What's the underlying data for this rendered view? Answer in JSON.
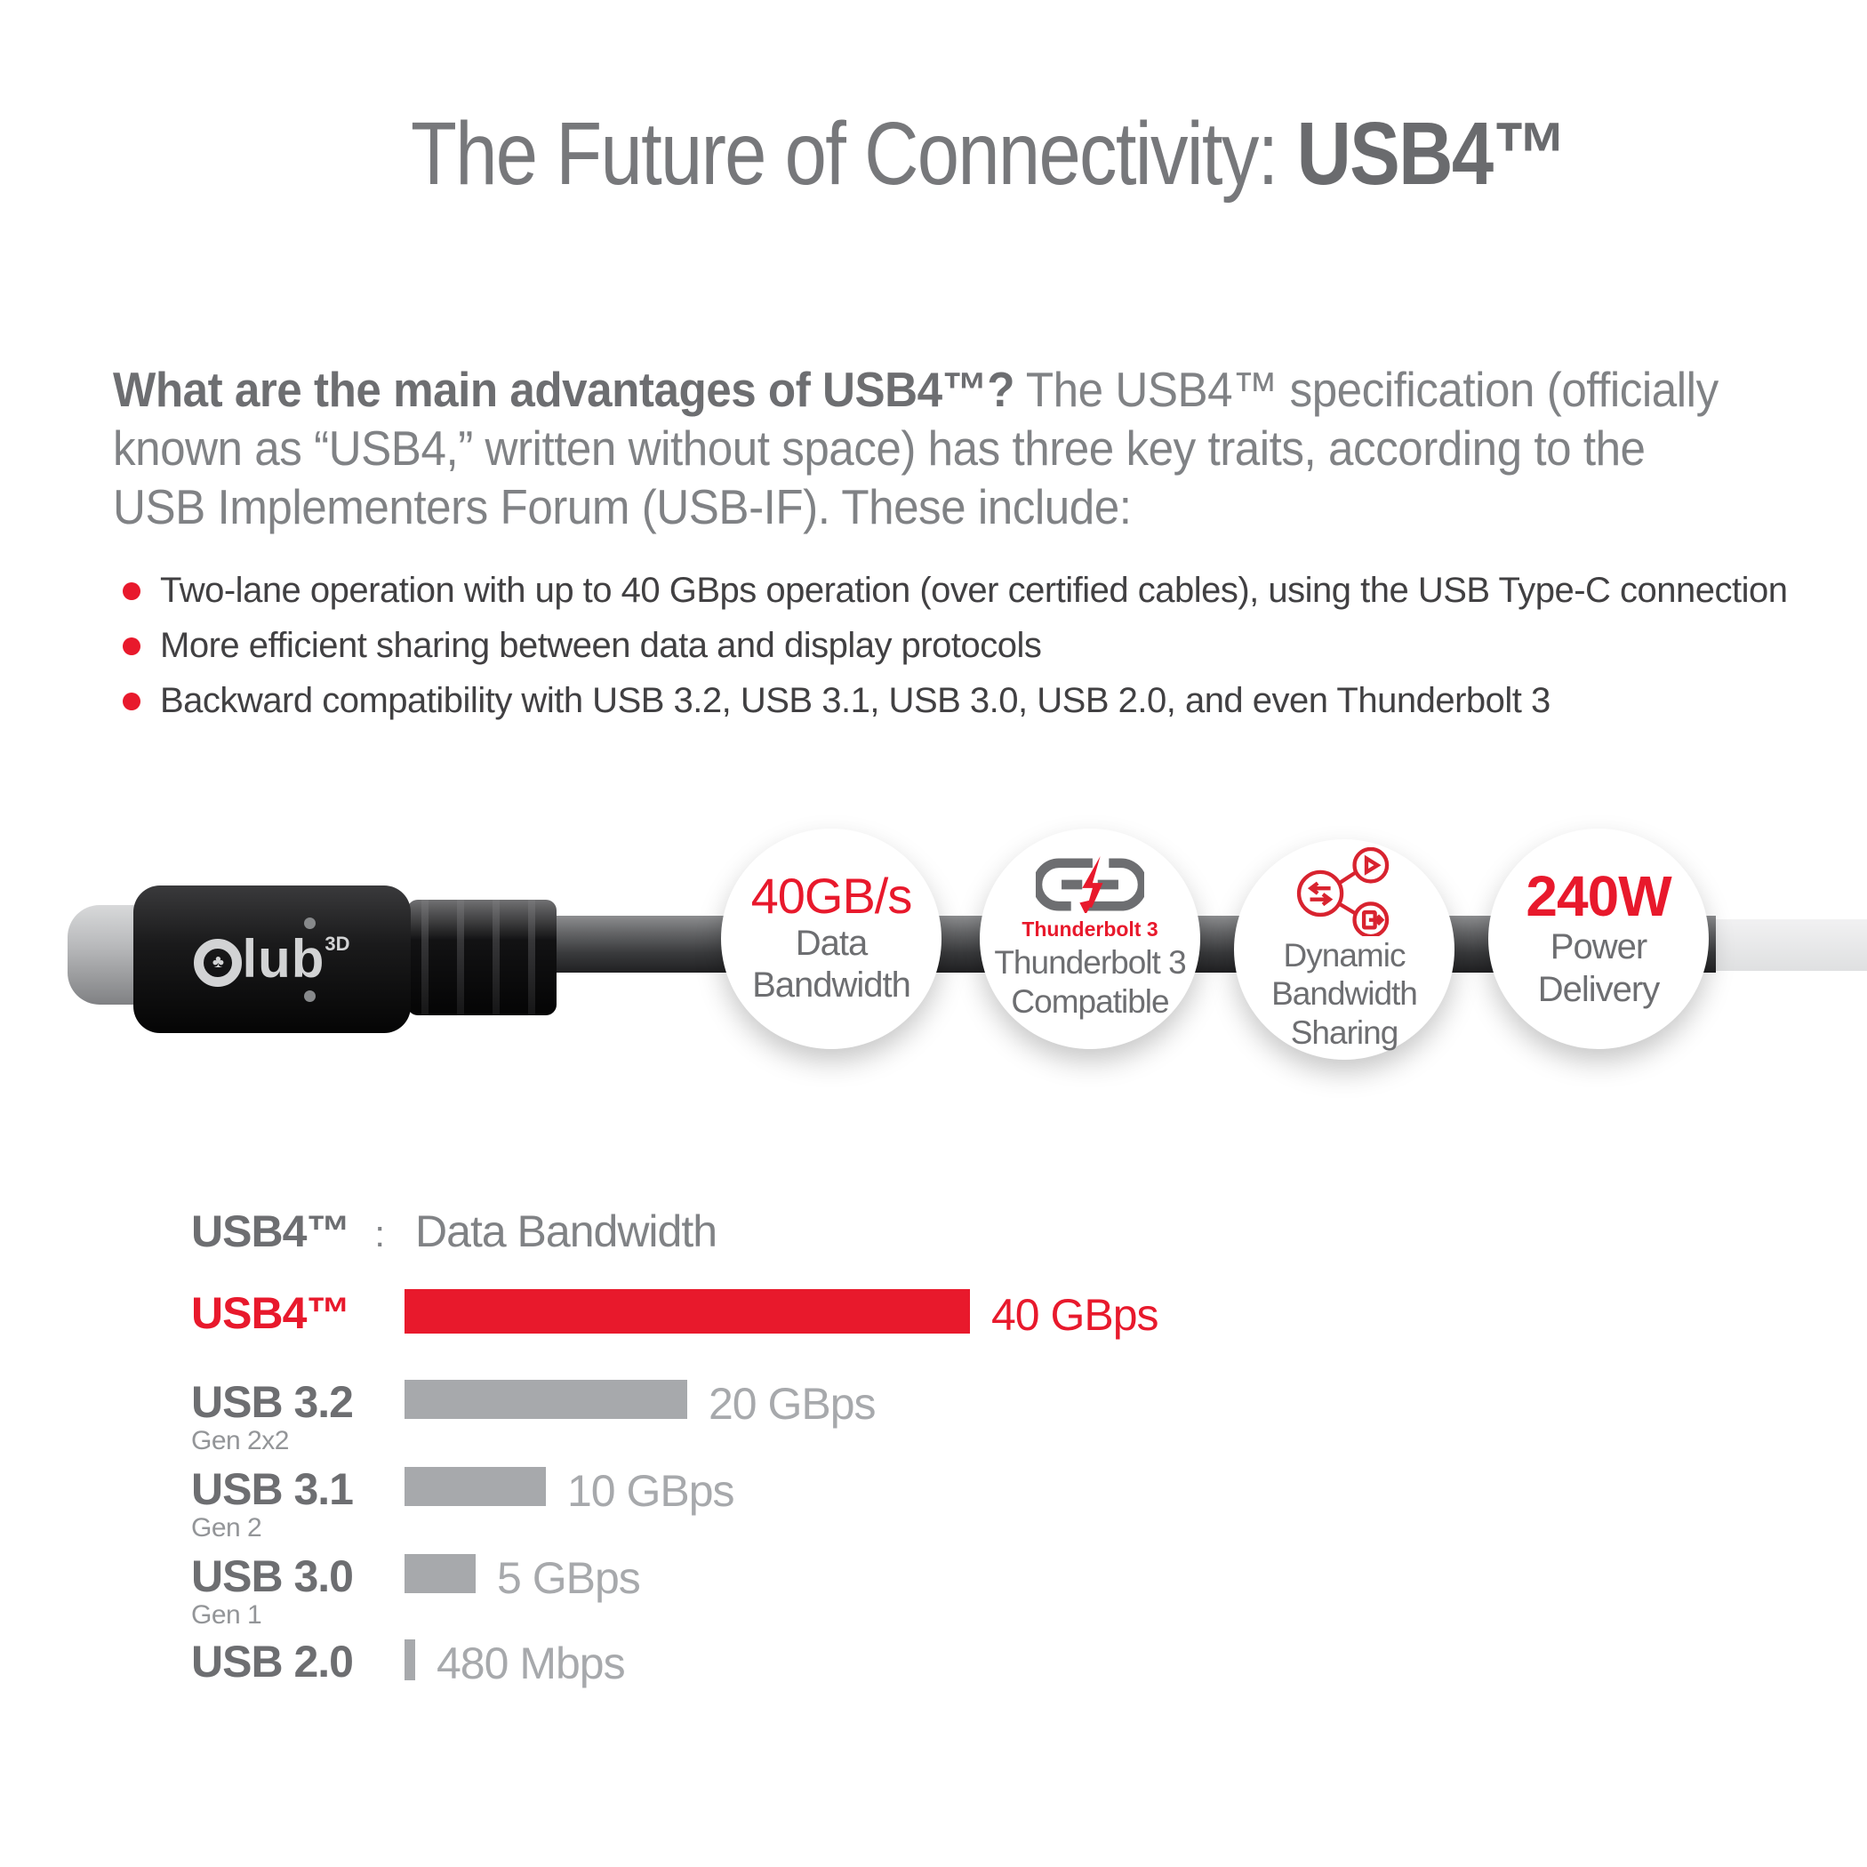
{
  "title": {
    "regular": "The Future of Connectivity: ",
    "product": "USB4™"
  },
  "intro": {
    "question": "What are the main advantages of USB4™?",
    "body": " The USB4™ specification (officially known as “USB4,” written without space) has three key traits, according to the USB Implementers Forum (USB-IF). These include:"
  },
  "bullets": [
    "Two-lane operation with up to 40 GBps operation (over certified cables), using the USB Type-C connection",
    "More efficient sharing between data and display protocols",
    "Backward compatibility with USB 3.2, USB 3.1, USB 3.0, USB 2.0, and even Thunderbolt 3"
  ],
  "cable": {
    "brand": "Club 3D",
    "brand_rest": "lub",
    "brand_sup": "3D"
  },
  "badges": [
    {
      "headline": "40GB/s",
      "lines": [
        "Data",
        "Bandwidth"
      ]
    },
    {
      "icon": "thunderbolt-3-logo",
      "icon_label": "Thunderbolt 3",
      "lines": [
        "Thunderbolt 3",
        "Compatible"
      ]
    },
    {
      "icon": "share-icon",
      "lines": [
        "Dynamic",
        "Bandwidth",
        "Sharing"
      ]
    },
    {
      "headline": "240W",
      "lines": [
        "Power",
        "Delivery"
      ]
    }
  ],
  "chart": {
    "heading_product": "USB4™",
    "heading_sep": ":",
    "heading_title": "Data Bandwidth",
    "rows": [
      {
        "label": "USB4™",
        "sublabel": "",
        "value_label": "40 GBps"
      },
      {
        "label": "USB 3.2",
        "sublabel": "Gen 2x2",
        "value_label": "20 GBps"
      },
      {
        "label": "USB 3.1",
        "sublabel": "Gen 2",
        "value_label": "10 GBps"
      },
      {
        "label": "USB 3.0",
        "sublabel": "Gen 1",
        "value_label": "5 GBps"
      },
      {
        "label": "USB 2.0",
        "sublabel": "",
        "value_label": "480 Mbps"
      }
    ]
  },
  "chart_data": {
    "type": "bar",
    "orientation": "horizontal",
    "title": "USB4™ : Data Bandwidth",
    "categories": [
      "USB4™",
      "USB 3.2 Gen 2x2",
      "USB 3.1 Gen 2",
      "USB 3.0 Gen 1",
      "USB 2.0"
    ],
    "values_gbps": [
      40,
      20,
      10,
      5,
      0.48
    ],
    "value_labels": [
      "40 GBps",
      "20 GBps",
      "10 GBps",
      "5 GBps",
      "480 Mbps"
    ],
    "xlim_gbps": [
      0,
      40
    ],
    "grid": false,
    "bar_colors": [
      "#e8192c",
      "#a7a9ac",
      "#a7a9ac",
      "#a7a9ac",
      "#a7a9ac"
    ]
  },
  "colors": {
    "accent_red": "#e8192c",
    "title_gray": "#77787b",
    "heading_gray": "#6d6e71",
    "body_gray": "#808285",
    "bullet_text": "#414042",
    "bar_gray": "#a7a9ac",
    "sublabel_gray": "#939598"
  }
}
